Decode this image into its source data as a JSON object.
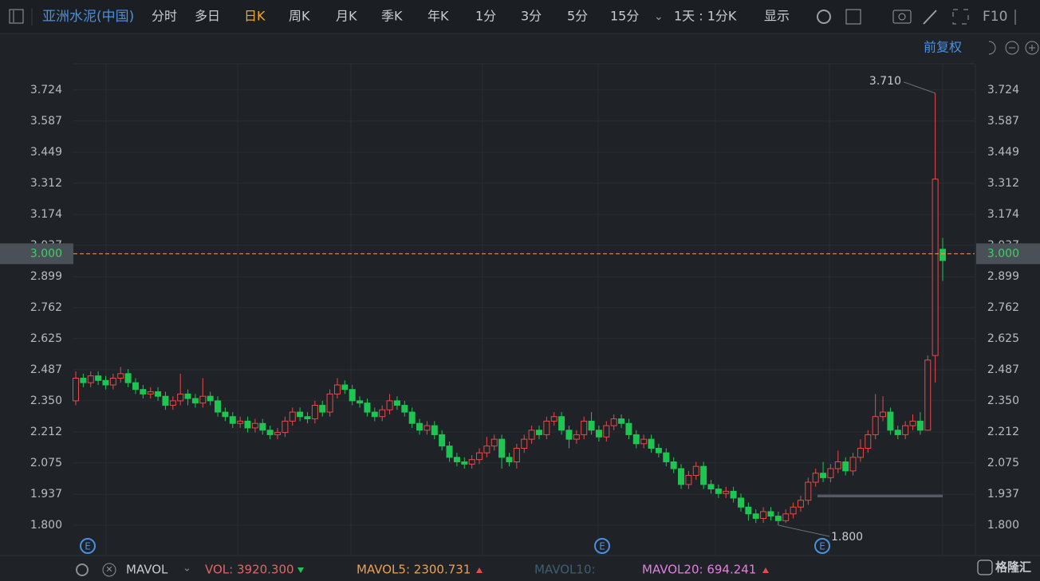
{
  "toolbar": {
    "symbol": "亚洲水泥(中国)",
    "periods": [
      "分时",
      "多日",
      "日K",
      "周K",
      "月K",
      "季K",
      "年K",
      "1分",
      "3分",
      "5分",
      "15分"
    ],
    "interval": "1天 : 1分K",
    "display": "显示",
    "f10": "F10",
    "adjust": "前复权"
  },
  "indicator_bar": {
    "name": "MAVOL",
    "items": [
      "VOL: 3920.300",
      "MAVOL5: 2300.731",
      "MAVOL10:",
      "MAVOL20: 694.241"
    ]
  },
  "logo": "格隆汇",
  "chart_data": {
    "type": "candlestick",
    "up_color": "#e84a4a",
    "down_color": "#1fc553",
    "grid": true,
    "ylim": [
      1.666,
      3.84
    ],
    "yticks": [
      {
        "value": 1.8,
        "label": "1.800"
      },
      1.937,
      2.075,
      2.212,
      {
        "value": 2.35,
        "label": "2.350"
      },
      2.487,
      2.625,
      2.762,
      2.899,
      3.037,
      3.174,
      3.312,
      3.449,
      3.587,
      3.724
    ],
    "price_line": {
      "value": 3,
      "label": "3.000"
    },
    "annotations": [
      {
        "value": 3.71,
        "label": "3.710"
      },
      {
        "value": 1.8,
        "label": "1.800"
      }
    ],
    "event_labels": [
      "E",
      "E",
      "E"
    ],
    "open": [
      2.35,
      2.45,
      2.43,
      2.46,
      2.44,
      2.42,
      2.45,
      2.47,
      2.43,
      2.4,
      2.38,
      2.39,
      2.37,
      2.33,
      2.35,
      2.38,
      2.36,
      2.34,
      2.37,
      2.35,
      2.3,
      2.28,
      2.25,
      2.26,
      2.23,
      2.25,
      2.22,
      2.2,
      2.21,
      2.26,
      2.3,
      2.28,
      2.27,
      2.33,
      2.3,
      2.38,
      2.42,
      2.4,
      2.35,
      2.34,
      2.3,
      2.28,
      2.31,
      2.35,
      2.33,
      2.3,
      2.25,
      2.22,
      2.24,
      2.2,
      2.15,
      2.1,
      2.08,
      2.07,
      2.09,
      2.12,
      2.15,
      2.18,
      2.1,
      2.08,
      2.14,
      2.18,
      2.22,
      2.2,
      2.26,
      2.28,
      2.22,
      2.18,
      2.2,
      2.26,
      2.22,
      2.19,
      2.24,
      2.27,
      2.25,
      2.2,
      2.16,
      2.18,
      2.14,
      2.12,
      2.08,
      2.05,
      1.98,
      2.02,
      2.06,
      1.98,
      1.96,
      1.94,
      1.95,
      1.92,
      1.88,
      1.85,
      1.83,
      1.86,
      1.84,
      1.82,
      1.85,
      1.88,
      1.91,
      1.99,
      2.03,
      2.01,
      2.05,
      2.08,
      2.04,
      2.1,
      2.14,
      2.2,
      2.28,
      2.3,
      2.22,
      2.2,
      2.24,
      2.26,
      2.22,
      2.55,
      3.02
    ],
    "high": [
      2.48,
      2.47,
      2.48,
      2.48,
      2.46,
      2.47,
      2.5,
      2.49,
      2.45,
      2.42,
      2.41,
      2.41,
      2.39,
      2.37,
      2.47,
      2.4,
      2.38,
      2.45,
      2.39,
      2.37,
      2.32,
      2.3,
      2.28,
      2.28,
      2.27,
      2.27,
      2.24,
      2.23,
      2.28,
      2.32,
      2.32,
      2.3,
      2.35,
      2.35,
      2.4,
      2.45,
      2.44,
      2.42,
      2.37,
      2.36,
      2.32,
      2.33,
      2.38,
      2.37,
      2.35,
      2.32,
      2.27,
      2.26,
      2.26,
      2.22,
      2.17,
      2.12,
      2.1,
      2.11,
      2.14,
      2.19,
      2.2,
      2.2,
      2.12,
      2.16,
      2.2,
      2.24,
      2.24,
      2.28,
      2.3,
      2.3,
      2.24,
      2.22,
      2.28,
      2.3,
      2.24,
      2.26,
      2.29,
      2.29,
      2.27,
      2.22,
      2.2,
      2.2,
      2.16,
      2.14,
      2.1,
      2.07,
      2.04,
      2.08,
      2.08,
      2.0,
      1.98,
      1.97,
      1.97,
      1.94,
      1.9,
      1.87,
      1.88,
      1.88,
      1.86,
      1.87,
      1.9,
      1.93,
      2.01,
      2.05,
      2.08,
      2.07,
      2.13,
      2.1,
      2.12,
      2.18,
      2.22,
      2.38,
      2.37,
      2.32,
      2.24,
      2.26,
      2.29,
      2.3,
      2.55,
      3.71,
      3.07
    ],
    "low": [
      2.33,
      2.41,
      2.41,
      2.42,
      2.4,
      2.4,
      2.43,
      2.41,
      2.38,
      2.36,
      2.36,
      2.35,
      2.31,
      2.31,
      2.33,
      2.33,
      2.32,
      2.32,
      2.33,
      2.28,
      2.26,
      2.23,
      2.23,
      2.21,
      2.21,
      2.2,
      2.18,
      2.18,
      2.19,
      2.24,
      2.26,
      2.25,
      2.25,
      2.28,
      2.28,
      2.36,
      2.38,
      2.33,
      2.32,
      2.28,
      2.26,
      2.26,
      2.29,
      2.31,
      2.28,
      2.23,
      2.2,
      2.2,
      2.18,
      2.13,
      2.08,
      2.06,
      2.05,
      2.05,
      2.07,
      2.1,
      2.13,
      2.05,
      2.06,
      2.05,
      2.12,
      2.16,
      2.18,
      2.18,
      2.24,
      2.2,
      2.14,
      2.16,
      2.18,
      2.2,
      2.17,
      2.17,
      2.22,
      2.23,
      2.18,
      2.14,
      2.14,
      2.12,
      2.1,
      2.06,
      2.03,
      1.96,
      1.96,
      2.0,
      1.96,
      1.94,
      1.92,
      1.92,
      1.9,
      1.86,
      1.82,
      1.81,
      1.81,
      1.82,
      1.8,
      1.81,
      1.83,
      1.86,
      1.89,
      1.97,
      1.99,
      1.99,
      2.03,
      2.02,
      2.02,
      2.08,
      2.12,
      2.18,
      2.26,
      2.2,
      2.18,
      2.18,
      2.22,
      2.2,
      2.22,
      2.43,
      2.88
    ],
    "close": [
      2.45,
      2.43,
      2.46,
      2.44,
      2.42,
      2.45,
      2.47,
      2.43,
      2.4,
      2.38,
      2.39,
      2.37,
      2.33,
      2.35,
      2.38,
      2.36,
      2.34,
      2.37,
      2.35,
      2.3,
      2.28,
      2.25,
      2.26,
      2.23,
      2.25,
      2.22,
      2.2,
      2.21,
      2.26,
      2.3,
      2.28,
      2.27,
      2.33,
      2.3,
      2.38,
      2.42,
      2.4,
      2.35,
      2.34,
      2.3,
      2.28,
      2.31,
      2.35,
      2.33,
      2.3,
      2.25,
      2.22,
      2.24,
      2.2,
      2.15,
      2.1,
      2.08,
      2.07,
      2.09,
      2.12,
      2.15,
      2.18,
      2.1,
      2.08,
      2.14,
      2.18,
      2.22,
      2.2,
      2.26,
      2.28,
      2.22,
      2.18,
      2.2,
      2.26,
      2.22,
      2.19,
      2.24,
      2.27,
      2.25,
      2.2,
      2.16,
      2.18,
      2.14,
      2.12,
      2.08,
      2.05,
      1.98,
      2.02,
      2.06,
      1.98,
      1.96,
      1.94,
      1.95,
      1.92,
      1.88,
      1.85,
      1.83,
      1.86,
      1.84,
      1.82,
      1.85,
      1.88,
      1.91,
      1.99,
      2.03,
      2.01,
      2.05,
      2.08,
      2.04,
      2.1,
      2.14,
      2.2,
      2.28,
      2.3,
      2.22,
      2.2,
      2.24,
      2.26,
      2.22,
      2.53,
      3.33,
      2.97
    ]
  }
}
